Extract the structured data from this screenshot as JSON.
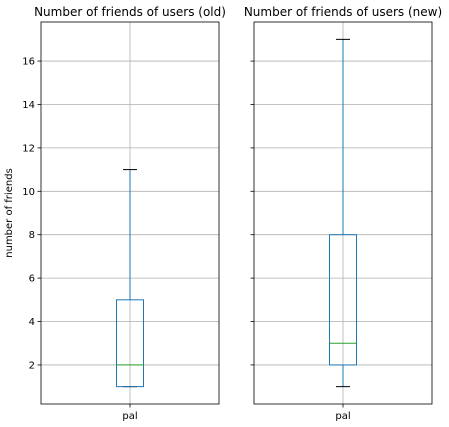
{
  "chart_data": [
    {
      "type": "box",
      "title": "Number of friends of users (old)",
      "ylabel": "number of friends",
      "xlabel": "",
      "categories": [
        "pal"
      ],
      "box": {
        "whisker_low": 1,
        "q1": 1,
        "median": 2,
        "q3": 5,
        "whisker_high": 11
      },
      "ylim": [
        0.2,
        17.8
      ],
      "yticks": [
        2,
        4,
        6,
        8,
        10,
        12,
        14,
        16
      ],
      "grid": true
    },
    {
      "type": "box",
      "title": "Number of friends of users (new)",
      "ylabel": "",
      "xlabel": "",
      "categories": [
        "pal"
      ],
      "box": {
        "whisker_low": 1,
        "q1": 2,
        "median": 3,
        "q3": 8,
        "whisker_high": 17
      },
      "ylim": [
        0.2,
        17.8
      ],
      "yticks": [
        2,
        4,
        6,
        8,
        10,
        12,
        14,
        16
      ],
      "grid": true
    }
  ],
  "colors": {
    "box": "#1f77b4",
    "median": "#2ca02c",
    "grid": "#b0b0b0",
    "whisker_cap": "#000000"
  }
}
